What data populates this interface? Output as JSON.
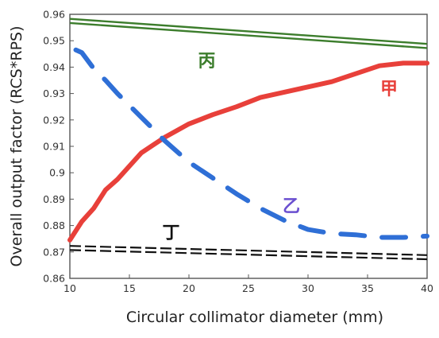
{
  "chart_data": {
    "type": "line",
    "title": "",
    "xlabel": "Circular collimator diameter (mm)",
    "ylabel": "Overall output factor (RCS*RPS)",
    "xlim": [
      10,
      40
    ],
    "ylim": [
      0.86,
      0.96
    ],
    "x_ticks": [
      10,
      15,
      20,
      25,
      30,
      35,
      40
    ],
    "y_ticks": [
      0.86,
      0.87,
      0.88,
      0.89,
      0.9,
      0.91,
      0.92,
      0.93,
      0.94,
      0.95,
      0.96
    ],
    "x_tick_labels": [
      "10",
      "15",
      "20",
      "25",
      "30",
      "35",
      "40"
    ],
    "y_tick_labels": [
      "0.86",
      "0.87",
      "0.88",
      "0.89",
      "0.9",
      "0.91",
      "0.92",
      "0.93",
      "0.94",
      "0.95",
      "0.96"
    ],
    "grid": false,
    "series": [
      {
        "name": "甲",
        "color": "#e8403a",
        "style": "solid",
        "x": [
          10,
          11,
          12,
          13,
          14,
          15,
          16,
          17,
          18,
          20,
          22,
          24,
          26,
          28,
          30,
          32,
          34,
          36,
          38,
          40
        ],
        "y": [
          0.8745,
          0.8815,
          0.8865,
          0.8935,
          0.8975,
          0.9025,
          0.9075,
          0.9105,
          0.9135,
          0.9185,
          0.922,
          0.925,
          0.9285,
          0.9305,
          0.9325,
          0.9345,
          0.9375,
          0.9405,
          0.9415,
          0.9415
        ]
      },
      {
        "name": "乙",
        "color": "#2f6fd6",
        "style": "dashed",
        "x": [
          10.5,
          11,
          12,
          13,
          14,
          15,
          16,
          17,
          18,
          20,
          22,
          24,
          26,
          28,
          30,
          32,
          34,
          36,
          38,
          40
        ],
        "y": [
          0.9465,
          0.9455,
          0.9395,
          0.935,
          0.93,
          0.9255,
          0.921,
          0.9165,
          0.912,
          0.904,
          0.898,
          0.892,
          0.8865,
          0.882,
          0.8785,
          0.877,
          0.8765,
          0.8755,
          0.8755,
          0.876
        ]
      },
      {
        "name": "丙",
        "color": "#3c7d2c",
        "style": "double",
        "x": [
          10,
          40
        ],
        "y": [
          0.9575,
          0.948
        ]
      },
      {
        "name": "丁",
        "color": "#111111",
        "style": "double-dashed",
        "x": [
          10,
          40
        ],
        "y": [
          0.8715,
          0.868
        ]
      }
    ],
    "annotations": [
      {
        "text": "丙",
        "x": 21.5,
        "y": 0.9425,
        "color": "#3c7d2c"
      },
      {
        "text": "甲",
        "x": 36.8,
        "y": 0.932,
        "color": "#e8403a"
      },
      {
        "text": "乙",
        "x": 28.6,
        "y": 0.8875,
        "color": "#6a4fd0"
      },
      {
        "text": "丁",
        "x": 18.5,
        "y": 0.8775,
        "color": "#111111"
      }
    ]
  }
}
